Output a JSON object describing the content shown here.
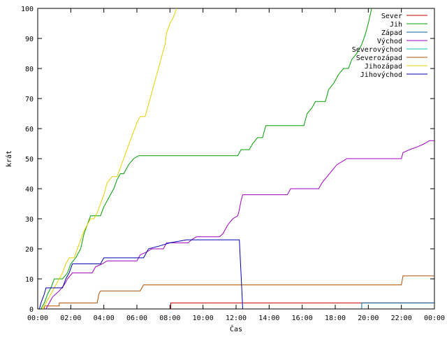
{
  "chart_data": {
    "type": "line",
    "title": "",
    "xlabel": "Čas",
    "ylabel": "krát",
    "x_unit": "hours",
    "xlim": [
      0,
      24
    ],
    "ylim": [
      0,
      100
    ],
    "grid": false,
    "legend_position": "top-right",
    "x_ticks": [
      {
        "value": 0,
        "label": "00:00"
      },
      {
        "value": 2,
        "label": "02:00"
      },
      {
        "value": 4,
        "label": "04:00"
      },
      {
        "value": 6,
        "label": "06:00"
      },
      {
        "value": 8,
        "label": "08:00"
      },
      {
        "value": 10,
        "label": "10:00"
      },
      {
        "value": 12,
        "label": "12:00"
      },
      {
        "value": 14,
        "label": "14:00"
      },
      {
        "value": 16,
        "label": "16:00"
      },
      {
        "value": 18,
        "label": "18:00"
      },
      {
        "value": 20,
        "label": "20:00"
      },
      {
        "value": 22,
        "label": "22:00"
      },
      {
        "value": 24,
        "label": "00:00"
      }
    ],
    "y_ticks": [
      {
        "value": 0,
        "label": "0"
      },
      {
        "value": 10,
        "label": "10"
      },
      {
        "value": 20,
        "label": "20"
      },
      {
        "value": 30,
        "label": "30"
      },
      {
        "value": 40,
        "label": "40"
      },
      {
        "value": 50,
        "label": "50"
      },
      {
        "value": 60,
        "label": "60"
      },
      {
        "value": 70,
        "label": "70"
      },
      {
        "value": 80,
        "label": "80"
      },
      {
        "value": 90,
        "label": "90"
      },
      {
        "value": 100,
        "label": "100"
      }
    ],
    "series": [
      {
        "name": "Sever",
        "color": "#cc0000",
        "points": [
          [
            8.05,
            0
          ],
          [
            8.05,
            2
          ],
          [
            24,
            2
          ]
        ]
      },
      {
        "name": "Jih",
        "color": "#00a000",
        "points": [
          [
            0.2,
            0
          ],
          [
            0.4,
            2
          ],
          [
            0.6,
            5
          ],
          [
            0.8,
            7
          ],
          [
            1.0,
            10
          ],
          [
            1.5,
            10
          ],
          [
            1.8,
            12
          ],
          [
            2.0,
            15
          ],
          [
            2.3,
            17
          ],
          [
            2.6,
            20
          ],
          [
            2.8,
            25
          ],
          [
            3.0,
            28
          ],
          [
            3.2,
            31
          ],
          [
            3.8,
            31
          ],
          [
            4.0,
            34
          ],
          [
            4.2,
            36
          ],
          [
            4.4,
            38
          ],
          [
            4.6,
            40
          ],
          [
            4.8,
            43
          ],
          [
            5.0,
            45
          ],
          [
            5.2,
            45
          ],
          [
            5.5,
            48
          ],
          [
            5.8,
            50
          ],
          [
            6.1,
            51
          ],
          [
            12.1,
            51
          ],
          [
            12.3,
            53
          ],
          [
            12.8,
            53
          ],
          [
            13.0,
            55
          ],
          [
            13.3,
            57
          ],
          [
            13.6,
            57
          ],
          [
            13.8,
            61
          ],
          [
            16.1,
            61
          ],
          [
            16.3,
            65
          ],
          [
            16.6,
            67
          ],
          [
            16.8,
            69
          ],
          [
            17.4,
            69
          ],
          [
            17.6,
            73
          ],
          [
            17.9,
            75
          ],
          [
            18.2,
            78
          ],
          [
            18.5,
            80
          ],
          [
            18.8,
            80
          ],
          [
            19.0,
            83
          ],
          [
            19.3,
            85
          ],
          [
            19.6,
            88
          ],
          [
            19.8,
            91
          ],
          [
            20.0,
            95
          ],
          [
            20.2,
            100
          ]
        ]
      },
      {
        "name": "Západ",
        "color": "#0066aa",
        "points": [
          [
            19.6,
            0
          ],
          [
            19.6,
            2
          ],
          [
            24,
            2
          ]
        ]
      },
      {
        "name": "Východ",
        "color": "#a000c0",
        "points": [
          [
            0.5,
            0
          ],
          [
            0.7,
            2
          ],
          [
            0.9,
            4
          ],
          [
            1.3,
            6
          ],
          [
            1.6,
            8
          ],
          [
            1.8,
            10
          ],
          [
            2.1,
            12
          ],
          [
            3.3,
            12
          ],
          [
            3.5,
            14
          ],
          [
            3.9,
            15
          ],
          [
            4.2,
            16
          ],
          [
            6.0,
            16
          ],
          [
            6.2,
            18
          ],
          [
            6.6,
            19
          ],
          [
            6.9,
            20
          ],
          [
            7.6,
            20
          ],
          [
            7.8,
            22
          ],
          [
            9.1,
            22
          ],
          [
            9.3,
            23
          ],
          [
            9.6,
            24
          ],
          [
            11.0,
            24
          ],
          [
            11.2,
            25
          ],
          [
            11.5,
            28
          ],
          [
            11.8,
            30
          ],
          [
            12.1,
            31
          ],
          [
            12.2,
            33
          ],
          [
            12.3,
            36
          ],
          [
            12.4,
            38
          ],
          [
            15.1,
            38
          ],
          [
            15.3,
            40
          ],
          [
            17.0,
            40
          ],
          [
            17.2,
            42
          ],
          [
            17.5,
            44
          ],
          [
            17.8,
            46
          ],
          [
            18.1,
            48
          ],
          [
            18.4,
            49
          ],
          [
            18.7,
            50
          ],
          [
            22.0,
            50
          ],
          [
            22.1,
            52
          ],
          [
            22.5,
            53
          ],
          [
            23.0,
            54
          ],
          [
            23.4,
            55
          ],
          [
            23.7,
            56
          ],
          [
            24,
            56
          ]
        ]
      },
      {
        "name": "Severovýchod",
        "color": "#00c0c0",
        "points": []
      },
      {
        "name": "Severozápad",
        "color": "#b05000",
        "points": [
          [
            0.4,
            0
          ],
          [
            0.4,
            1
          ],
          [
            1.3,
            1
          ],
          [
            1.3,
            2
          ],
          [
            3.6,
            2
          ],
          [
            3.7,
            5
          ],
          [
            3.8,
            6
          ],
          [
            6.2,
            6
          ],
          [
            6.4,
            8
          ],
          [
            22.0,
            8
          ],
          [
            22.1,
            11
          ],
          [
            24,
            11
          ]
        ]
      },
      {
        "name": "Jihozápad",
        "color": "#e8d000",
        "points": [
          [
            0.3,
            0
          ],
          [
            0.5,
            2
          ],
          [
            0.7,
            4
          ],
          [
            0.9,
            6
          ],
          [
            1.1,
            8
          ],
          [
            1.3,
            10
          ],
          [
            1.5,
            12
          ],
          [
            1.7,
            15
          ],
          [
            1.9,
            17
          ],
          [
            2.2,
            17
          ],
          [
            2.4,
            20
          ],
          [
            2.6,
            23
          ],
          [
            2.8,
            26
          ],
          [
            3.0,
            28
          ],
          [
            3.2,
            30
          ],
          [
            3.4,
            30
          ],
          [
            3.6,
            32
          ],
          [
            3.8,
            35
          ],
          [
            4.0,
            38
          ],
          [
            4.2,
            42
          ],
          [
            4.5,
            44
          ],
          [
            4.8,
            44
          ],
          [
            5.0,
            47
          ],
          [
            5.2,
            50
          ],
          [
            5.4,
            53
          ],
          [
            5.6,
            56
          ],
          [
            5.8,
            59
          ],
          [
            6.0,
            62
          ],
          [
            6.2,
            64
          ],
          [
            6.5,
            64
          ],
          [
            6.7,
            68
          ],
          [
            6.9,
            72
          ],
          [
            7.1,
            76
          ],
          [
            7.3,
            80
          ],
          [
            7.5,
            84
          ],
          [
            7.7,
            88
          ],
          [
            7.8,
            92
          ],
          [
            8.0,
            95
          ],
          [
            8.2,
            97
          ],
          [
            8.4,
            100
          ]
        ]
      },
      {
        "name": "Jihovýchod",
        "color": "#0000b0",
        "points": [
          [
            0.1,
            0
          ],
          [
            0.2,
            2
          ],
          [
            0.4,
            5
          ],
          [
            0.5,
            7
          ],
          [
            1.5,
            7
          ],
          [
            1.7,
            10
          ],
          [
            1.9,
            12
          ],
          [
            2.1,
            15
          ],
          [
            3.8,
            15
          ],
          [
            4.0,
            17
          ],
          [
            6.4,
            17
          ],
          [
            6.7,
            20
          ],
          [
            7.4,
            21
          ],
          [
            8.0,
            22
          ],
          [
            9.0,
            23
          ],
          [
            12.2,
            23
          ],
          [
            12.35,
            6
          ],
          [
            12.4,
            0
          ]
        ]
      }
    ]
  }
}
